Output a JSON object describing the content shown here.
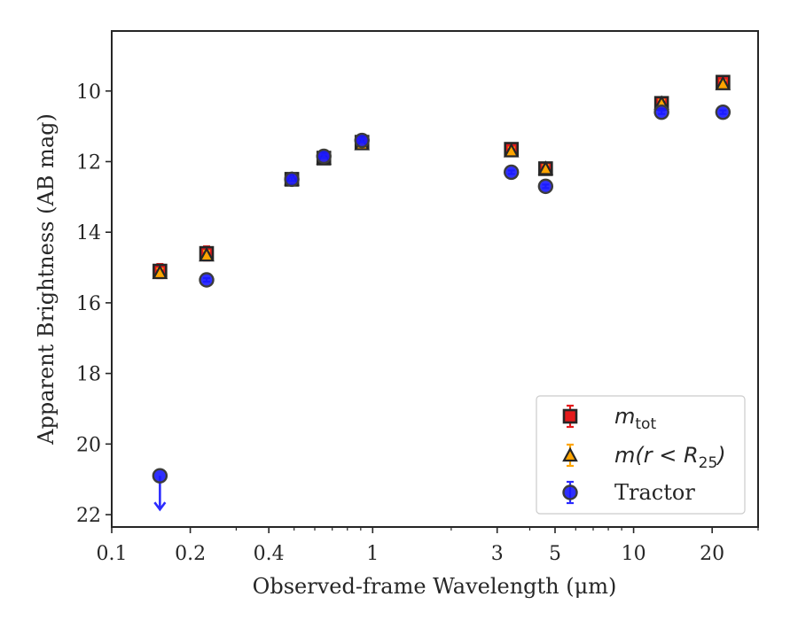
{
  "chart_data": {
    "type": "scatter",
    "title": "",
    "xlabel": "Observed-frame Wavelength (μm)",
    "ylabel": "Apparent Brightness (AB mag)",
    "xscale": "log",
    "xlim": [
      0.1,
      30
    ],
    "ylim": [
      22.35,
      8.3
    ],
    "y_inverted": true,
    "xticks": [
      {
        "value": 0.1,
        "label": "0.1"
      },
      {
        "value": 0.2,
        "label": "0.2"
      },
      {
        "value": 0.4,
        "label": "0.4"
      },
      {
        "value": 1,
        "label": "1"
      },
      {
        "value": 3,
        "label": "3"
      },
      {
        "value": 5,
        "label": "5"
      },
      {
        "value": 10,
        "label": "10"
      },
      {
        "value": 20,
        "label": "20"
      }
    ],
    "yticks": [
      10,
      12,
      14,
      16,
      18,
      20,
      22
    ],
    "grid": false,
    "legend_position": "lower-right",
    "series": [
      {
        "label_base": "m",
        "label_sub": "tot",
        "marker": "square",
        "color": "#e41a1c",
        "edge": "#262626",
        "err_color": "#e41a1c",
        "x": [
          0.153,
          0.231,
          0.49,
          0.65,
          0.91,
          3.4,
          4.6,
          12.8,
          22.0
        ],
        "y": [
          15.1,
          14.6,
          12.5,
          11.9,
          11.45,
          11.65,
          12.2,
          10.35,
          9.75
        ],
        "yerr": [
          0.2,
          0.2,
          0.12,
          0.1,
          0.1,
          0.15,
          0.15,
          0.15,
          0.18
        ]
      },
      {
        "label_base": "m(r < R",
        "label_sub": "25",
        "label_close": ")",
        "marker": "triangle",
        "color": "#ffa500",
        "edge": "#262626",
        "err_color": "#ffa500",
        "x": [
          0.153,
          0.231,
          0.49,
          0.65,
          0.91,
          3.4,
          4.6,
          12.8,
          22.0
        ],
        "y": [
          15.15,
          14.65,
          12.5,
          11.9,
          11.5,
          11.7,
          12.2,
          10.35,
          9.8
        ],
        "yerr": [
          0.12,
          0.12,
          0.08,
          0.08,
          0.08,
          0.1,
          0.1,
          0.1,
          0.1
        ]
      },
      {
        "name": "Tractor",
        "marker": "circle",
        "color": "#1a1aff",
        "edge": "#3c3c3c",
        "err_color": "#2b2bff",
        "x": [
          0.153,
          0.231,
          0.49,
          0.65,
          0.91,
          3.4,
          4.6,
          12.8,
          22.0
        ],
        "y": [
          20.9,
          15.35,
          12.5,
          11.85,
          11.4,
          12.3,
          12.7,
          10.6,
          10.6
        ],
        "yerr": [
          0,
          0.05,
          0.05,
          0.05,
          0.05,
          0.05,
          0.05,
          0.05,
          0.05
        ],
        "upper_limit": [
          true,
          false,
          false,
          false,
          false,
          false,
          false,
          false,
          false
        ]
      }
    ]
  }
}
